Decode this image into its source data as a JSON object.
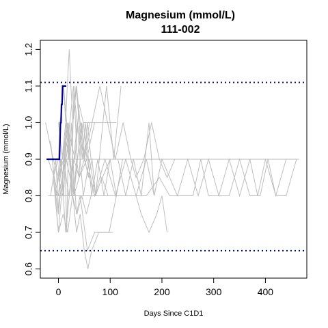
{
  "chart_data": {
    "type": "line",
    "title": "Magnesium (mmol/L)",
    "subtitle": "111-002",
    "xlabel": "Days Since C1D1",
    "ylabel": "Magnesium (mmol/L)",
    "xlim": [
      -35,
      480
    ],
    "ylim": [
      0.575,
      1.225
    ],
    "xticks": [
      0,
      100,
      200,
      300,
      400
    ],
    "yticks": [
      0.6,
      0.7,
      0.8,
      0.9,
      1.0,
      1.1,
      1.2
    ],
    "ytick_labels": [
      "0.6",
      "0.7",
      "0.8",
      "0.9",
      "1.0",
      "1.1",
      "1.2"
    ],
    "reference_lines": [
      {
        "y": 1.11,
        "color": "#00008b",
        "style": "dotted"
      },
      {
        "y": 0.65,
        "color": "#00008b",
        "style": "dotted"
      }
    ],
    "grid": false,
    "colors": {
      "background": "#ffffff",
      "other_patients": "#bebebe",
      "highlight": "#00008b"
    },
    "highlight": {
      "x": [
        -23,
        -15,
        -8,
        0,
        1,
        2,
        3,
        4,
        5,
        6,
        7,
        8,
        9,
        10,
        12,
        15
      ],
      "y": [
        0.9,
        0.9,
        0.9,
        0.9,
        0.9,
        0.9,
        0.95,
        1.0,
        1.0,
        1.05,
        1.05,
        1.1,
        1.1,
        1.1,
        1.1,
        1.1
      ]
    },
    "series": [
      {
        "x": [
          -20,
          -10,
          -5,
          0,
          7,
          15,
          22,
          30,
          45,
          60,
          90,
          120,
          150,
          180,
          210,
          240,
          270,
          300,
          330,
          360,
          390,
          420,
          440,
          465
        ],
        "y": [
          0.9,
          0.9,
          0.9,
          0.9,
          0.9,
          0.9,
          0.9,
          0.9,
          0.9,
          0.9,
          0.9,
          0.9,
          0.9,
          0.9,
          0.9,
          0.9,
          0.9,
          0.9,
          0.9,
          0.9,
          0.9,
          0.9,
          0.9,
          0.9
        ]
      },
      {
        "x": [
          -20,
          -5,
          0,
          7,
          15,
          22,
          30,
          45,
          60,
          75,
          90,
          110,
          130,
          150,
          170,
          195,
          215,
          240,
          260,
          275,
          290,
          310,
          330,
          350,
          370,
          390,
          405,
          420,
          440,
          460
        ],
        "y": [
          0.8,
          0.8,
          0.8,
          0.8,
          0.8,
          0.8,
          0.8,
          0.8,
          0.8,
          0.8,
          0.8,
          0.8,
          0.8,
          0.8,
          0.8,
          0.85,
          0.8,
          0.8,
          0.8,
          0.9,
          0.8,
          0.8,
          0.8,
          0.9,
          0.8,
          0.8,
          0.9,
          0.8,
          0.8,
          0.9
        ]
      },
      {
        "x": [
          0,
          15,
          30,
          50,
          70,
          90,
          110,
          130,
          150,
          170,
          185,
          200,
          230,
          250,
          270,
          290,
          310,
          330,
          350,
          370,
          385,
          400,
          420,
          440
        ],
        "y": [
          0.8,
          0.9,
          0.8,
          0.9,
          0.8,
          0.9,
          0.8,
          0.9,
          0.8,
          0.9,
          0.8,
          0.9,
          0.8,
          0.9,
          0.8,
          0.9,
          0.8,
          0.9,
          0.8,
          0.9,
          0.8,
          0.9,
          0.8,
          0.9
        ]
      },
      {
        "x": [
          -25,
          -10,
          0,
          8,
          15,
          22,
          29,
          36,
          50,
          65,
          80,
          95,
          110,
          125,
          140,
          150,
          165,
          180,
          195,
          210,
          225
        ],
        "y": [
          1.0,
          0.9,
          0.85,
          0.8,
          0.9,
          1.0,
          1.1,
          1.0,
          0.9,
          1.0,
          1.1,
          1.0,
          0.9,
          1.0,
          0.9,
          0.85,
          0.9,
          1.0,
          0.9,
          0.85,
          0.9
        ]
      },
      {
        "x": [
          -15,
          -5,
          0,
          7,
          14,
          21,
          28,
          35,
          42,
          56,
          70,
          84,
          98,
          112,
          126,
          140,
          150,
          160,
          175,
          190,
          200,
          210
        ],
        "y": [
          0.95,
          0.8,
          0.75,
          0.85,
          0.7,
          0.8,
          0.9,
          0.75,
          0.8,
          0.65,
          0.7,
          0.7,
          0.7,
          0.8,
          0.8,
          0.8,
          0.8,
          0.75,
          0.7,
          0.75,
          0.8,
          0.7
        ]
      },
      {
        "x": [
          -20,
          -8,
          0,
          7,
          14,
          21,
          28,
          35,
          42,
          50,
          57,
          64,
          78,
          92,
          106
        ],
        "y": [
          0.9,
          0.85,
          0.8,
          0.9,
          1.0,
          0.9,
          0.8,
          0.7,
          0.75,
          0.65,
          0.6,
          0.65,
          0.7,
          0.7,
          0.7
        ]
      },
      {
        "x": [
          -10,
          0,
          3,
          7,
          10,
          14,
          17,
          21,
          24,
          28,
          35,
          42,
          49,
          56,
          63
        ],
        "y": [
          0.85,
          0.9,
          1.0,
          1.05,
          1.1,
          1.0,
          1.1,
          1.2,
          1.1,
          1.0,
          1.1,
          1.0,
          0.9,
          1.0,
          0.9
        ]
      },
      {
        "x": [
          -15,
          -5,
          0,
          4,
          8,
          12,
          16,
          20,
          25,
          30,
          36,
          42,
          48,
          55,
          62,
          70
        ],
        "y": [
          0.8,
          0.9,
          0.75,
          0.9,
          0.85,
          0.95,
          0.7,
          1.0,
          0.8,
          1.1,
          0.9,
          0.95,
          1.0,
          0.9,
          0.95,
          1.0
        ]
      },
      {
        "x": [
          -5,
          0,
          5,
          10,
          15,
          20,
          25,
          30,
          35,
          40,
          45,
          50,
          60,
          70,
          80,
          90
        ],
        "y": [
          0.8,
          0.85,
          0.9,
          0.8,
          0.95,
          0.9,
          1.0,
          0.8,
          0.9,
          0.85,
          1.0,
          0.9,
          1.0,
          1.0,
          1.0,
          1.0
        ]
      },
      {
        "x": [
          -10,
          0,
          6,
          12,
          18,
          24,
          30,
          36,
          42,
          48,
          60,
          72,
          84,
          96,
          108,
          120,
          132
        ],
        "y": [
          0.85,
          0.7,
          0.8,
          0.9,
          1.0,
          0.85,
          0.9,
          1.0,
          0.9,
          0.8,
          0.9,
          0.8,
          0.85,
          0.8,
          0.8,
          0.8,
          0.8
        ]
      },
      {
        "x": [
          0,
          5,
          10,
          16,
          22,
          28,
          34,
          40,
          46,
          52,
          58,
          64,
          76,
          88,
          100,
          112,
          124
        ],
        "y": [
          0.9,
          1.0,
          1.1,
          1.0,
          0.9,
          1.0,
          1.1,
          1.0,
          0.9,
          1.0,
          0.9,
          0.8,
          0.9,
          0.8,
          0.9,
          0.8,
          0.9
        ]
      },
      {
        "x": [
          -18,
          -6,
          0,
          9,
          18,
          27,
          36,
          45,
          54,
          63,
          72
        ],
        "y": [
          0.8,
          0.8,
          0.7,
          0.75,
          0.7,
          0.8,
          0.75,
          0.8,
          0.75,
          0.8,
          0.8
        ]
      },
      {
        "x": [
          0,
          8,
          16,
          24,
          32,
          40,
          48,
          56,
          64,
          72,
          80,
          88,
          96,
          104,
          112
        ],
        "y": [
          1.0,
          0.9,
          1.0,
          0.95,
          0.9,
          1.05,
          1.0,
          1.0,
          1.0,
          1.0,
          1.0,
          1.0,
          1.0,
          1.0,
          1.0
        ]
      },
      {
        "x": [
          -12,
          -4,
          2,
          9,
          16,
          23,
          30,
          37,
          44,
          51,
          58,
          65,
          72,
          79,
          86,
          93,
          100,
          107,
          114,
          121
        ],
        "y": [
          0.9,
          0.8,
          0.9,
          0.85,
          1.0,
          0.9,
          0.8,
          0.9,
          1.0,
          0.9,
          0.85,
          0.9,
          0.8,
          0.9,
          1.0,
          1.1,
          1.0,
          0.9,
          1.0,
          1.1
        ]
      },
      {
        "x": [
          0,
          10,
          20,
          30,
          40,
          55,
          70,
          85,
          100,
          115,
          130,
          145,
          160,
          175,
          185
        ],
        "y": [
          0.85,
          0.9,
          0.8,
          0.9,
          0.85,
          0.9,
          0.8,
          0.85,
          0.9,
          0.9,
          0.8,
          0.9,
          0.8,
          1.0,
          0.8
        ]
      }
    ]
  }
}
